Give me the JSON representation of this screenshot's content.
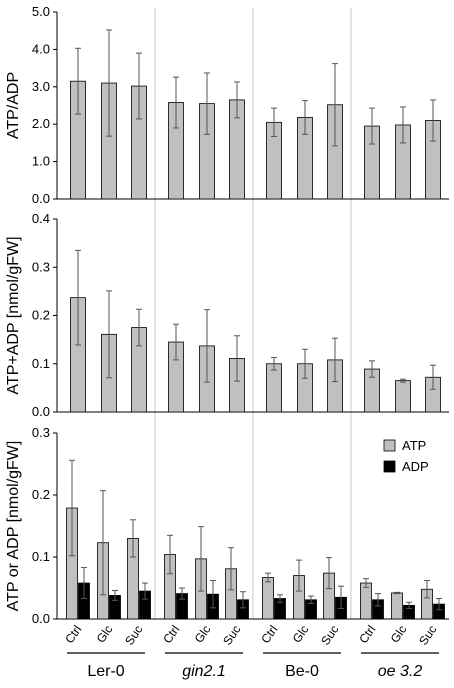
{
  "chart_data": [
    {
      "type": "bar",
      "ylabel": "ATP/ADP",
      "ylim": [
        0,
        5
      ],
      "yticks": [
        "0.0",
        "1.0",
        "2.0",
        "3.0",
        "4.0",
        "5.0"
      ],
      "series": [
        {
          "name": "",
          "color": "#c0c0c0",
          "values": [
            3.15,
            3.1,
            3.02,
            2.58,
            2.55,
            2.65,
            2.05,
            2.18,
            2.52,
            1.95,
            1.98,
            2.1
          ],
          "errors": [
            0.88,
            1.42,
            0.88,
            0.68,
            0.82,
            0.48,
            0.38,
            0.45,
            1.1,
            0.48,
            0.48,
            0.55
          ]
        }
      ]
    },
    {
      "type": "bar",
      "ylabel": "ATP+ADP [nmol/gFW]",
      "ylim": [
        0,
        0.4
      ],
      "yticks": [
        "0.0",
        "0.1",
        "0.2",
        "0.3",
        "0.4"
      ],
      "series": [
        {
          "name": "",
          "color": "#c0c0c0",
          "values": [
            0.237,
            0.161,
            0.175,
            0.145,
            0.137,
            0.111,
            0.1,
            0.1,
            0.108,
            0.089,
            0.065,
            0.072
          ],
          "errors": [
            0.098,
            0.09,
            0.038,
            0.037,
            0.075,
            0.047,
            0.013,
            0.03,
            0.045,
            0.017,
            0.003,
            0.025
          ]
        }
      ]
    },
    {
      "type": "bar",
      "ylabel": "ATP or ADP [nmol/gFW]",
      "ylim": [
        0,
        0.3
      ],
      "yticks": [
        "0.0",
        "0.1",
        "0.2",
        "0.3"
      ],
      "legend_position": "top-right",
      "series": [
        {
          "name": "ATP",
          "color": "#c0c0c0",
          "values": [
            0.179,
            0.123,
            0.13,
            0.104,
            0.097,
            0.081,
            0.067,
            0.07,
            0.074,
            0.058,
            0.042,
            0.048
          ],
          "errors": [
            0.077,
            0.084,
            0.03,
            0.031,
            0.052,
            0.034,
            0.007,
            0.025,
            0.025,
            0.007,
            0.001,
            0.014
          ]
        },
        {
          "name": "ADP",
          "color": "#000000",
          "values": [
            0.058,
            0.038,
            0.045,
            0.041,
            0.04,
            0.031,
            0.033,
            0.031,
            0.035,
            0.031,
            0.022,
            0.024
          ],
          "errors": [
            0.025,
            0.008,
            0.013,
            0.009,
            0.022,
            0.013,
            0.006,
            0.006,
            0.018,
            0.01,
            0.005,
            0.009
          ]
        }
      ]
    }
  ],
  "categories": [
    "Ctrl",
    "Glc",
    "Suc",
    "Ctrl",
    "Glc",
    "Suc",
    "Ctrl",
    "Glc",
    "Suc",
    "Ctrl",
    "Glc",
    "Suc"
  ],
  "groups": [
    {
      "label": "Ler-0",
      "italic": false
    },
    {
      "label": "gin2.1",
      "italic": true
    },
    {
      "label": "Be-0",
      "italic": false
    },
    {
      "label": "oe 3.2",
      "italic": true
    }
  ]
}
